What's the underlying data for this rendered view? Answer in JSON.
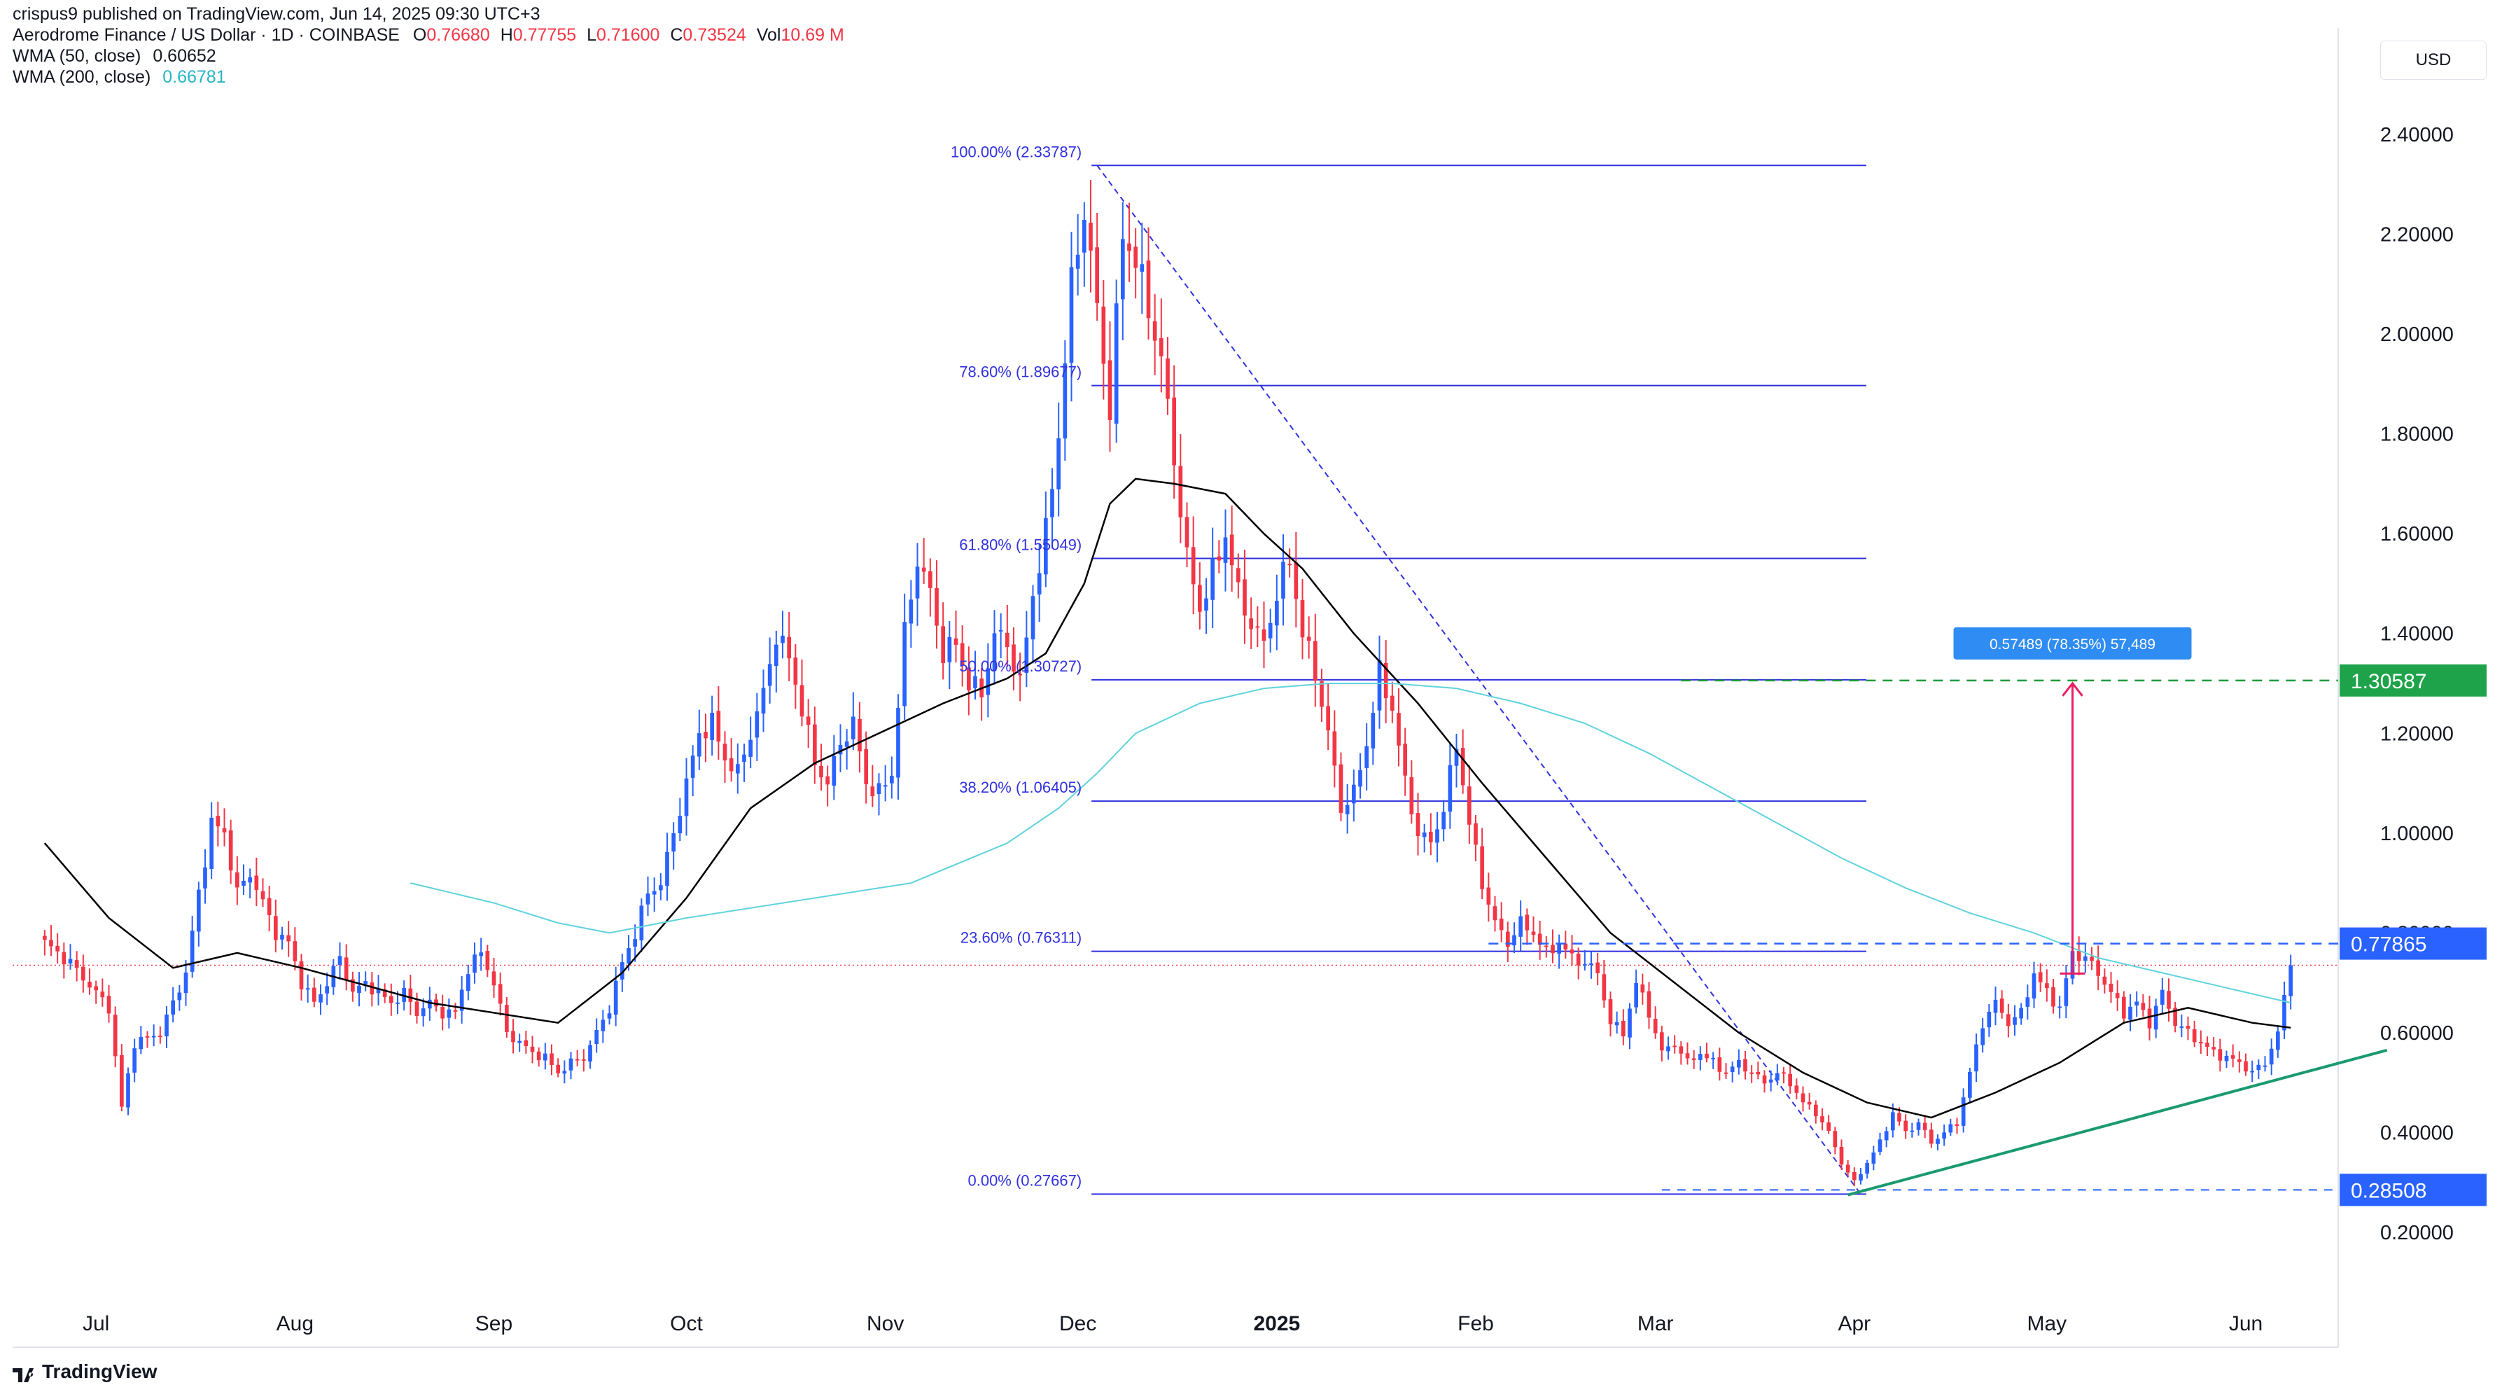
{
  "publisher": "crispus9 published on TradingView.com, Jun 14, 2025 09:30 UTC+3",
  "legend": {
    "symbol": "Aerodrome Finance / US Dollar · 1D · COINBASE",
    "o_label": "O",
    "o_value": "0.76680",
    "h_label": "H",
    "h_value": "0.77755",
    "l_label": "L",
    "l_value": "0.71600",
    "c_label": "C",
    "c_value": "0.73524",
    "vol_label": "Vol",
    "vol_value": "10.69 M",
    "wma50_label": "WMA (50, close)",
    "wma50_value": "0.60652",
    "wma200_label": "WMA (200, close)",
    "wma200_value": "0.66781"
  },
  "currency": "USD",
  "brand": "TradingView",
  "colors": {
    "up": "#2962ff",
    "down": "#f23645",
    "wma50": "#000000",
    "wma200": "#5fd3dc",
    "fib": "#3030e0",
    "target": "#1f9a3c",
    "support": "#1b9a6f",
    "arrow": "#e91e63",
    "measure": "#2f8cf2"
  },
  "chart_data": {
    "type": "candlestick",
    "title": "Aerodrome Finance / US Dollar · 1D · COINBASE",
    "xlabel": "",
    "ylabel": "USD",
    "ylim": [
      0.1,
      2.6
    ],
    "y_ticks": [
      2.4,
      2.2,
      2.0,
      1.8,
      1.6,
      1.4,
      1.2,
      1.0,
      0.8,
      0.6,
      0.4,
      0.2
    ],
    "y_tick_labels": [
      "2.40000",
      "2.20000",
      "2.00000",
      "1.80000",
      "1.60000",
      "1.40000",
      "1.20000",
      "1.00000",
      "0.80000",
      "0.60000",
      "0.40000",
      "0.20000"
    ],
    "x_range_days": [
      -5,
      355
    ],
    "x_ticks": [
      {
        "day": 8,
        "label": "Jul",
        "bold": false
      },
      {
        "day": 39,
        "label": "Aug",
        "bold": false
      },
      {
        "day": 70,
        "label": "Sep",
        "bold": false
      },
      {
        "day": 100,
        "label": "Oct",
        "bold": false
      },
      {
        "day": 131,
        "label": "Nov",
        "bold": false
      },
      {
        "day": 161,
        "label": "Dec",
        "bold": false
      },
      {
        "day": 192,
        "label": "2025",
        "bold": true
      },
      {
        "day": 223,
        "label": "Feb",
        "bold": false
      },
      {
        "day": 251,
        "label": "Mar",
        "bold": false
      },
      {
        "day": 282,
        "label": "Apr",
        "bold": false
      },
      {
        "day": 312,
        "label": "May",
        "bold": false
      },
      {
        "day": 343,
        "label": "Jun",
        "bold": false
      }
    ],
    "anchors": [
      [
        0,
        0.78
      ],
      [
        4,
        0.74
      ],
      [
        10,
        0.65
      ],
      [
        12,
        0.45
      ],
      [
        14,
        0.58
      ],
      [
        18,
        0.6
      ],
      [
        22,
        0.72
      ],
      [
        24,
        0.88
      ],
      [
        26,
        1.02
      ],
      [
        28,
        1.0
      ],
      [
        30,
        0.88
      ],
      [
        32,
        0.92
      ],
      [
        34,
        0.86
      ],
      [
        36,
        0.8
      ],
      [
        38,
        0.78
      ],
      [
        40,
        0.7
      ],
      [
        42,
        0.66
      ],
      [
        44,
        0.7
      ],
      [
        46,
        0.75
      ],
      [
        48,
        0.68
      ],
      [
        50,
        0.7
      ],
      [
        52,
        0.68
      ],
      [
        54,
        0.66
      ],
      [
        56,
        0.68
      ],
      [
        58,
        0.64
      ],
      [
        60,
        0.66
      ],
      [
        62,
        0.64
      ],
      [
        64,
        0.64
      ],
      [
        66,
        0.73
      ],
      [
        68,
        0.76
      ],
      [
        70,
        0.7
      ],
      [
        72,
        0.6
      ],
      [
        74,
        0.58
      ],
      [
        76,
        0.56
      ],
      [
        78,
        0.55
      ],
      [
        80,
        0.52
      ],
      [
        82,
        0.54
      ],
      [
        84,
        0.55
      ],
      [
        86,
        0.6
      ],
      [
        88,
        0.65
      ],
      [
        90,
        0.74
      ],
      [
        92,
        0.8
      ],
      [
        94,
        0.88
      ],
      [
        96,
        0.9
      ],
      [
        98,
        1.0
      ],
      [
        100,
        1.1
      ],
      [
        102,
        1.2
      ],
      [
        104,
        1.22
      ],
      [
        106,
        1.15
      ],
      [
        108,
        1.12
      ],
      [
        110,
        1.2
      ],
      [
        112,
        1.28
      ],
      [
        114,
        1.4
      ],
      [
        116,
        1.35
      ],
      [
        118,
        1.25
      ],
      [
        120,
        1.14
      ],
      [
        122,
        1.1
      ],
      [
        124,
        1.18
      ],
      [
        126,
        1.22
      ],
      [
        128,
        1.1
      ],
      [
        130,
        1.08
      ],
      [
        132,
        1.12
      ],
      [
        134,
        1.4
      ],
      [
        136,
        1.55
      ],
      [
        138,
        1.48
      ],
      [
        140,
        1.36
      ],
      [
        142,
        1.38
      ],
      [
        144,
        1.3
      ],
      [
        146,
        1.28
      ],
      [
        148,
        1.4
      ],
      [
        150,
        1.38
      ],
      [
        152,
        1.3
      ],
      [
        154,
        1.48
      ],
      [
        156,
        1.6
      ],
      [
        158,
        1.8
      ],
      [
        160,
        2.1
      ],
      [
        162,
        2.25
      ],
      [
        164,
        2.05
      ],
      [
        166,
        1.85
      ],
      [
        168,
        2.2
      ],
      [
        170,
        2.15
      ],
      [
        172,
        2.05
      ],
      [
        174,
        1.95
      ],
      [
        176,
        1.75
      ],
      [
        178,
        1.55
      ],
      [
        180,
        1.45
      ],
      [
        182,
        1.52
      ],
      [
        184,
        1.6
      ],
      [
        186,
        1.48
      ],
      [
        188,
        1.42
      ],
      [
        190,
        1.38
      ],
      [
        192,
        1.48
      ],
      [
        194,
        1.55
      ],
      [
        196,
        1.4
      ],
      [
        198,
        1.32
      ],
      [
        200,
        1.2
      ],
      [
        202,
        1.05
      ],
      [
        204,
        1.08
      ],
      [
        206,
        1.18
      ],
      [
        208,
        1.32
      ],
      [
        210,
        1.25
      ],
      [
        212,
        1.1
      ],
      [
        214,
        1.0
      ],
      [
        216,
        0.98
      ],
      [
        218,
        1.05
      ],
      [
        220,
        1.18
      ],
      [
        222,
        1.02
      ],
      [
        224,
        0.9
      ],
      [
        226,
        0.82
      ],
      [
        228,
        0.78
      ],
      [
        230,
        0.82
      ],
      [
        232,
        0.8
      ],
      [
        234,
        0.76
      ],
      [
        236,
        0.78
      ],
      [
        238,
        0.75
      ],
      [
        240,
        0.74
      ],
      [
        242,
        0.72
      ],
      [
        244,
        0.62
      ],
      [
        246,
        0.6
      ],
      [
        248,
        0.7
      ],
      [
        250,
        0.64
      ],
      [
        252,
        0.56
      ],
      [
        254,
        0.58
      ],
      [
        256,
        0.54
      ],
      [
        258,
        0.56
      ],
      [
        260,
        0.54
      ],
      [
        262,
        0.52
      ],
      [
        264,
        0.54
      ],
      [
        266,
        0.52
      ],
      [
        268,
        0.5
      ],
      [
        270,
        0.52
      ],
      [
        272,
        0.5
      ],
      [
        274,
        0.46
      ],
      [
        276,
        0.44
      ],
      [
        278,
        0.4
      ],
      [
        280,
        0.34
      ],
      [
        282,
        0.3
      ],
      [
        284,
        0.34
      ],
      [
        286,
        0.38
      ],
      [
        288,
        0.44
      ],
      [
        290,
        0.4
      ],
      [
        292,
        0.42
      ],
      [
        294,
        0.38
      ],
      [
        296,
        0.4
      ],
      [
        298,
        0.42
      ],
      [
        300,
        0.52
      ],
      [
        302,
        0.62
      ],
      [
        304,
        0.66
      ],
      [
        306,
        0.62
      ],
      [
        308,
        0.64
      ],
      [
        310,
        0.72
      ],
      [
        312,
        0.68
      ],
      [
        314,
        0.65
      ],
      [
        316,
        0.76
      ],
      [
        318,
        0.75
      ],
      [
        320,
        0.72
      ],
      [
        322,
        0.68
      ],
      [
        324,
        0.64
      ],
      [
        326,
        0.66
      ],
      [
        328,
        0.62
      ],
      [
        330,
        0.68
      ],
      [
        332,
        0.62
      ],
      [
        334,
        0.6
      ],
      [
        336,
        0.58
      ],
      [
        338,
        0.56
      ],
      [
        340,
        0.55
      ],
      [
        342,
        0.54
      ],
      [
        344,
        0.52
      ],
      [
        346,
        0.54
      ],
      [
        348,
        0.6
      ],
      [
        350,
        0.735
      ]
    ],
    "series": [
      {
        "name": "WMA (50, close)",
        "values": [
          [
            0,
            0.98
          ],
          [
            10,
            0.83
          ],
          [
            20,
            0.73
          ],
          [
            30,
            0.76
          ],
          [
            40,
            0.73
          ],
          [
            60,
            0.66
          ],
          [
            80,
            0.62
          ],
          [
            90,
            0.72
          ],
          [
            100,
            0.87
          ],
          [
            110,
            1.05
          ],
          [
            120,
            1.14
          ],
          [
            130,
            1.2
          ],
          [
            140,
            1.26
          ],
          [
            150,
            1.31
          ],
          [
            156,
            1.36
          ],
          [
            162,
            1.5
          ],
          [
            166,
            1.66
          ],
          [
            170,
            1.71
          ],
          [
            176,
            1.7
          ],
          [
            184,
            1.68
          ],
          [
            190,
            1.6
          ],
          [
            196,
            1.53
          ],
          [
            204,
            1.4
          ],
          [
            214,
            1.26
          ],
          [
            224,
            1.1
          ],
          [
            234,
            0.95
          ],
          [
            244,
            0.8
          ],
          [
            254,
            0.7
          ],
          [
            264,
            0.6
          ],
          [
            274,
            0.52
          ],
          [
            284,
            0.46
          ],
          [
            294,
            0.43
          ],
          [
            304,
            0.48
          ],
          [
            314,
            0.54
          ],
          [
            324,
            0.62
          ],
          [
            334,
            0.65
          ],
          [
            344,
            0.62
          ],
          [
            350,
            0.61
          ]
        ]
      },
      {
        "name": "WMA (200, close)",
        "values": [
          [
            57,
            0.9
          ],
          [
            70,
            0.86
          ],
          [
            80,
            0.82
          ],
          [
            88,
            0.8
          ],
          [
            100,
            0.83
          ],
          [
            120,
            0.87
          ],
          [
            135,
            0.9
          ],
          [
            150,
            0.98
          ],
          [
            158,
            1.05
          ],
          [
            164,
            1.12
          ],
          [
            170,
            1.2
          ],
          [
            180,
            1.26
          ],
          [
            190,
            1.29
          ],
          [
            200,
            1.3
          ],
          [
            210,
            1.3
          ],
          [
            220,
            1.29
          ],
          [
            230,
            1.26
          ],
          [
            240,
            1.22
          ],
          [
            250,
            1.16
          ],
          [
            260,
            1.09
          ],
          [
            270,
            1.02
          ],
          [
            280,
            0.95
          ],
          [
            290,
            0.89
          ],
          [
            300,
            0.84
          ],
          [
            310,
            0.8
          ],
          [
            320,
            0.75
          ],
          [
            330,
            0.72
          ],
          [
            340,
            0.69
          ],
          [
            350,
            0.66
          ]
        ]
      }
    ],
    "fibonacci": {
      "start_day": 164,
      "end_day": 283,
      "levels": [
        {
          "label": "100.00% (2.33787)",
          "price": 2.33787
        },
        {
          "label": "78.60% (1.89677)",
          "price": 1.89677
        },
        {
          "label": "61.80% (1.55049)",
          "price": 1.55049
        },
        {
          "label": "50.00% (1.30727)",
          "price": 1.30727
        },
        {
          "label": "38.20% (1.06405)",
          "price": 1.06405
        },
        {
          "label": "23.60% (0.76311)",
          "price": 0.76311
        },
        {
          "label": "0.00% (0.27667)",
          "price": 0.27667
        }
      ]
    },
    "annotations": {
      "target_price": 1.30587,
      "target_label": "1.30587",
      "resistance_price": 0.77865,
      "resistance_label": "0.77865",
      "support_price": 0.28508,
      "support_label": "0.28508",
      "measure_label": "0.57489 (78.35%) 57,489",
      "last_close": 0.73524
    }
  }
}
